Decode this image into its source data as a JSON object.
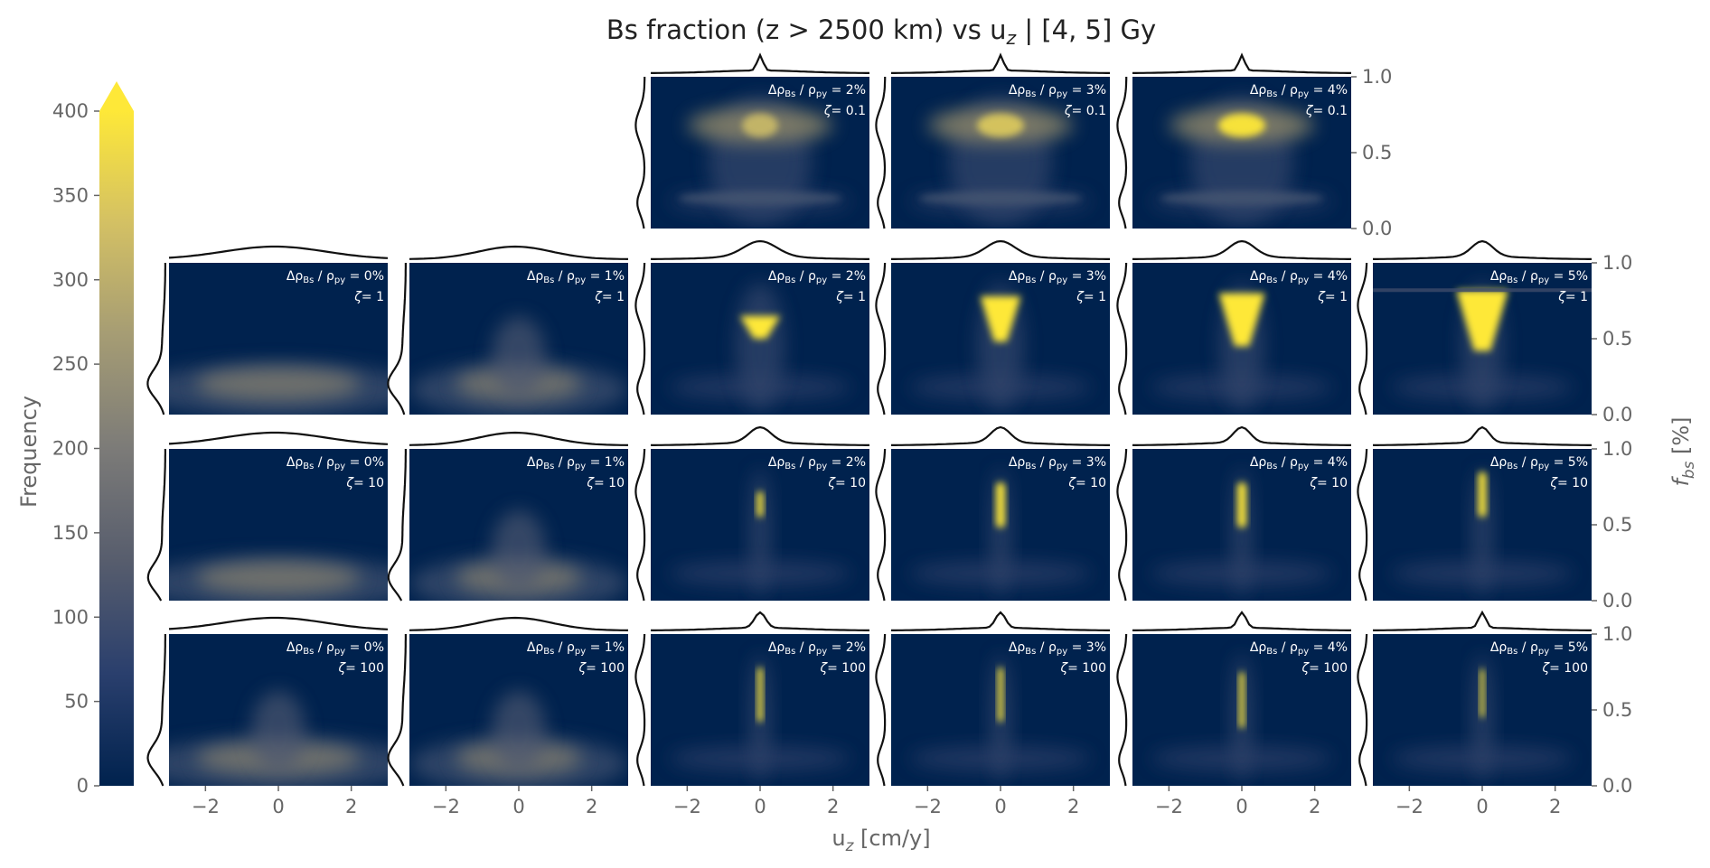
{
  "figure": {
    "title": "Bs fraction (z > 2500 km) vs u_z | [4, 5] Gy",
    "xlabel": "u_z [cm/y]",
    "ylabel": "f_bs [%]"
  },
  "colorbar": {
    "label": "Frequency",
    "ticks": [
      "0",
      "50",
      "100",
      "150",
      "200",
      "250",
      "300",
      "350",
      "400"
    ],
    "colors": [
      "#00224e",
      "#2a3f6d",
      "#575d6d",
      "#7c7b78",
      "#a59c74",
      "#d3c064",
      "#fee838"
    ]
  },
  "chart_data": {
    "type": "heatmap",
    "colormap": "cividis",
    "vmin": 0,
    "vmax": 400,
    "extend": "max",
    "x_range": [
      -3,
      3
    ],
    "y_range": [
      0,
      1
    ],
    "x_ticks": [
      "−2",
      "0",
      "2"
    ],
    "y_ticks": [
      "0.0",
      "0.5",
      "1.0"
    ],
    "marginals": true,
    "rows": [
      {
        "zeta": "0.1",
        "panels": [
          {
            "col": 2,
            "label": "2%",
            "zeta": "0.1"
          },
          {
            "col": 3,
            "label": "3%",
            "zeta": "0.1"
          },
          {
            "col": 4,
            "label": "4%",
            "zeta": "0.1"
          }
        ]
      },
      {
        "zeta": "1",
        "panels": [
          {
            "col": 0,
            "label": "0%",
            "zeta": "1"
          },
          {
            "col": 1,
            "label": "1%",
            "zeta": "1"
          },
          {
            "col": 2,
            "label": "2%",
            "zeta": "1"
          },
          {
            "col": 3,
            "label": "3%",
            "zeta": "1"
          },
          {
            "col": 4,
            "label": "4%",
            "zeta": "1"
          },
          {
            "col": 5,
            "label": "5%",
            "zeta": "1"
          }
        ]
      },
      {
        "zeta": "10",
        "panels": [
          {
            "col": 0,
            "label": "0%",
            "zeta": "10"
          },
          {
            "col": 1,
            "label": "1%",
            "zeta": "10"
          },
          {
            "col": 2,
            "label": "2%",
            "zeta": "10"
          },
          {
            "col": 3,
            "label": "3%",
            "zeta": "10"
          },
          {
            "col": 4,
            "label": "4%",
            "zeta": "10"
          },
          {
            "col": 5,
            "label": "5%",
            "zeta": "10"
          }
        ]
      },
      {
        "zeta": "100",
        "panels": [
          {
            "col": 0,
            "label": "0%",
            "zeta": "100"
          },
          {
            "col": 1,
            "label": "1%",
            "zeta": "100"
          },
          {
            "col": 2,
            "label": "2%",
            "zeta": "100"
          },
          {
            "col": 3,
            "label": "3%",
            "zeta": "100"
          },
          {
            "col": 4,
            "label": "4%",
            "zeta": "100"
          },
          {
            "col": 5,
            "label": "5%",
            "zeta": "100"
          }
        ]
      }
    ]
  }
}
